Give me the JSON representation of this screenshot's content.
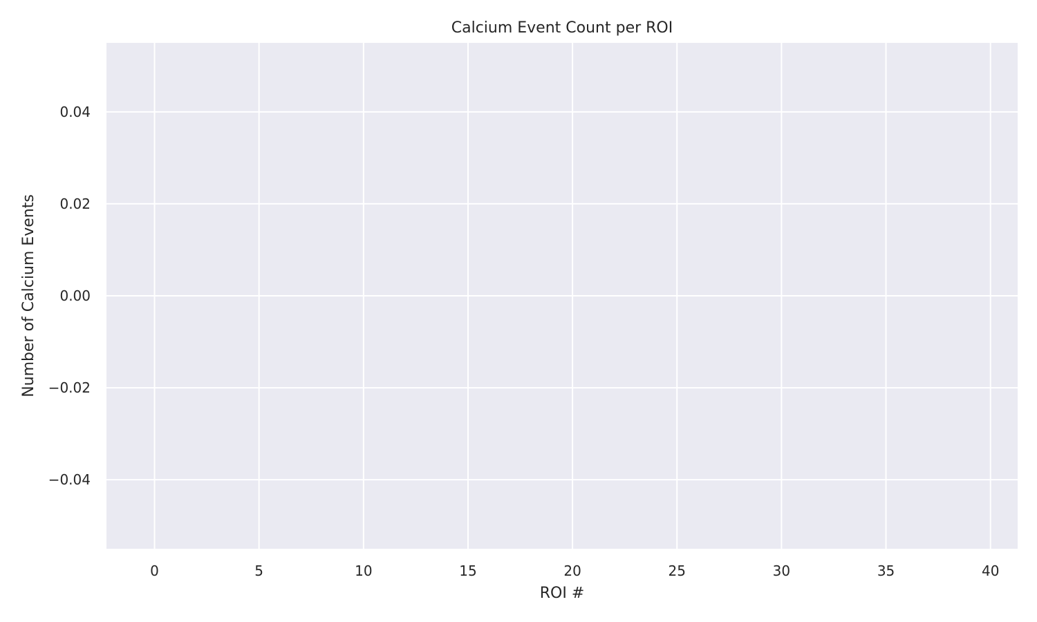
{
  "chart_data": {
    "type": "bar",
    "title": "Calcium Event Count per ROI",
    "xlabel": "ROI #",
    "ylabel": "Number of Calcium Events",
    "xlim": [
      -2.3,
      41.3
    ],
    "ylim": [
      -0.055,
      0.055
    ],
    "x_ticks": [
      0,
      5,
      10,
      15,
      20,
      25,
      30,
      35,
      40
    ],
    "x_tick_labels": [
      "0",
      "5",
      "10",
      "15",
      "20",
      "25",
      "30",
      "35",
      "40"
    ],
    "y_ticks": [
      -0.04,
      -0.02,
      0.0,
      0.02,
      0.04
    ],
    "y_tick_labels": [
      "−0.04",
      "−0.02",
      "0.00",
      "0.02",
      "0.04"
    ],
    "grid": true,
    "background_color": "#eaeaf2",
    "grid_color": "#ffffff",
    "text_color": "#262626",
    "categories": [],
    "values": []
  }
}
